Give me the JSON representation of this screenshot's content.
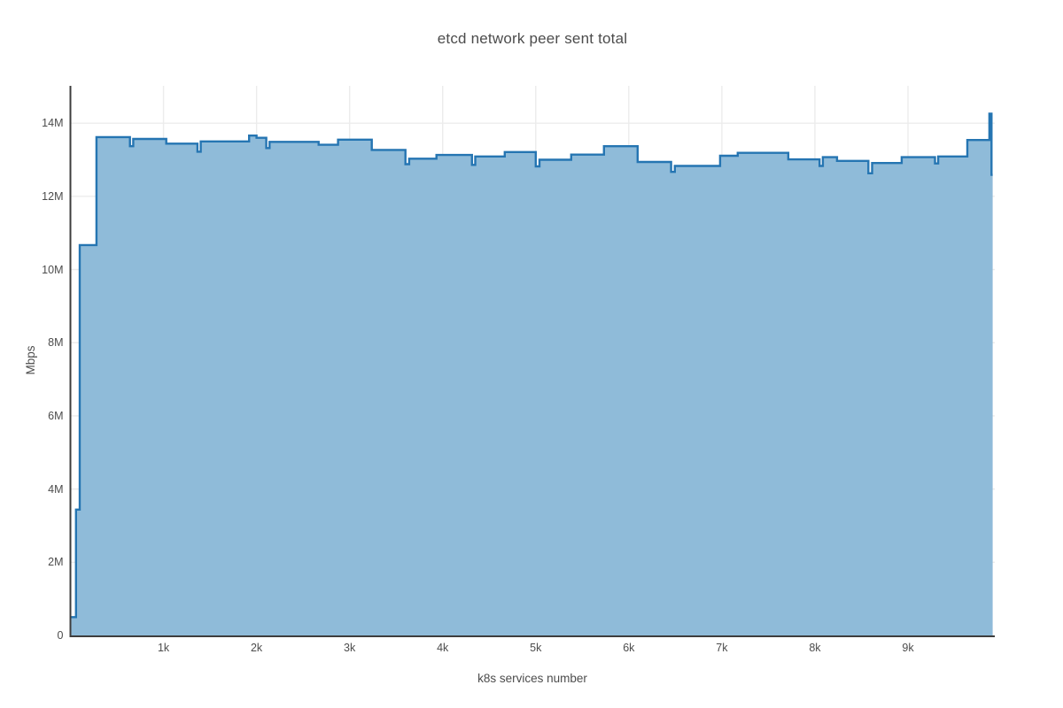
{
  "chart": {
    "title": "etcd network peer sent total",
    "xlabel": "k8s services number",
    "ylabel": "Mbps"
  },
  "chart_data": {
    "type": "area",
    "line_shape": "hv",
    "title": "etcd network peer sent total",
    "xlabel": "k8s services number",
    "ylabel": "Mbps",
    "legend": false,
    "grid": true,
    "xlim": [
      0,
      9933
    ],
    "ylim": [
      0,
      15020000
    ],
    "x_end": 9910,
    "colors": {
      "line": "#2575b2",
      "fill": "#8fbbd9",
      "grid": "#ececec",
      "axis": "#3d3d3d",
      "text": "#4c4c4c",
      "background": "#ffffff"
    },
    "x_ticks": [
      {
        "v": 1000,
        "label": "1k"
      },
      {
        "v": 2000,
        "label": "2k"
      },
      {
        "v": 3000,
        "label": "3k"
      },
      {
        "v": 4000,
        "label": "4k"
      },
      {
        "v": 5000,
        "label": "5k"
      },
      {
        "v": 6000,
        "label": "6k"
      },
      {
        "v": 7000,
        "label": "7k"
      },
      {
        "v": 8000,
        "label": "8k"
      },
      {
        "v": 9000,
        "label": "9k"
      }
    ],
    "y_ticks": [
      {
        "v": 0,
        "label": "0"
      },
      {
        "v": 2000000,
        "label": "2M"
      },
      {
        "v": 4000000,
        "label": "4M"
      },
      {
        "v": 6000000,
        "label": "6M"
      },
      {
        "v": 8000000,
        "label": "8M"
      },
      {
        "v": 10000000,
        "label": "10M"
      },
      {
        "v": 12000000,
        "label": "12M"
      },
      {
        "v": 14000000,
        "label": "14M"
      }
    ],
    "points": [
      [
        0,
        500000
      ],
      [
        60,
        3440000
      ],
      [
        100,
        10670000
      ],
      [
        280,
        13620000
      ],
      [
        640,
        13370000
      ],
      [
        675,
        13570000
      ],
      [
        1030,
        13440000
      ],
      [
        1365,
        13220000
      ],
      [
        1400,
        13500000
      ],
      [
        1920,
        13660000
      ],
      [
        2000,
        13600000
      ],
      [
        2105,
        13320000
      ],
      [
        2140,
        13490000
      ],
      [
        2667,
        13410000
      ],
      [
        2876,
        13550000
      ],
      [
        3238,
        13270000
      ],
      [
        3600,
        12880000
      ],
      [
        3640,
        13030000
      ],
      [
        3933,
        13130000
      ],
      [
        4315,
        12860000
      ],
      [
        4350,
        13090000
      ],
      [
        4667,
        13210000
      ],
      [
        5000,
        12820000
      ],
      [
        5040,
        13000000
      ],
      [
        5381,
        13140000
      ],
      [
        5733,
        13370000
      ],
      [
        6095,
        12940000
      ],
      [
        6455,
        12670000
      ],
      [
        6495,
        12830000
      ],
      [
        6981,
        13110000
      ],
      [
        7171,
        13190000
      ],
      [
        7714,
        13010000
      ],
      [
        8050,
        12830000
      ],
      [
        8085,
        13070000
      ],
      [
        8238,
        12970000
      ],
      [
        8575,
        12630000
      ],
      [
        8615,
        12910000
      ],
      [
        8933,
        13070000
      ],
      [
        9290,
        12900000
      ],
      [
        9325,
        13090000
      ],
      [
        9638,
        13540000
      ],
      [
        9875,
        14260000
      ],
      [
        9898,
        12590000
      ]
    ]
  }
}
